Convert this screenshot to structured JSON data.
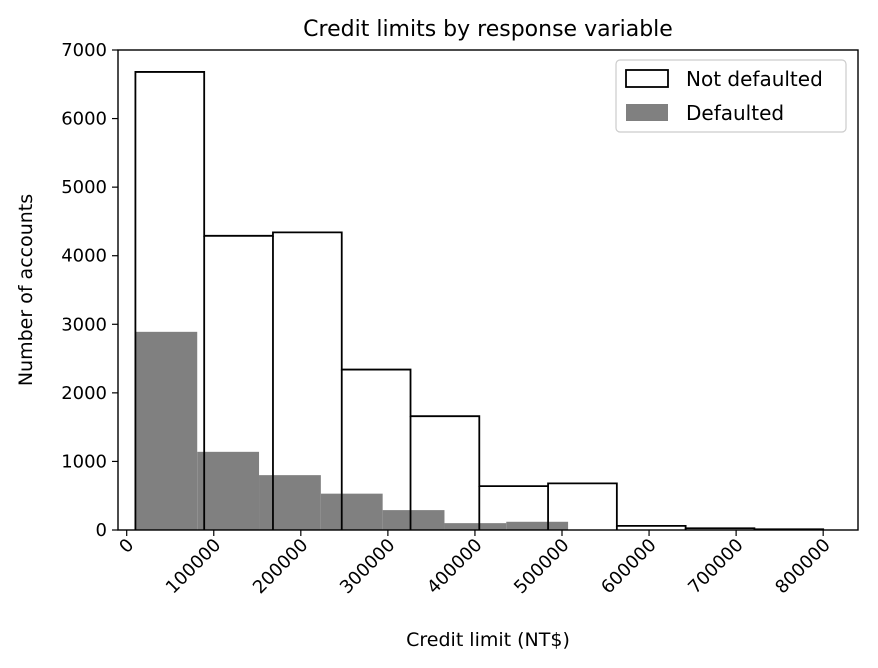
{
  "chart_data": {
    "type": "bar",
    "title": "Credit limits by response variable",
    "xlabel": "Credit limit (NT$)",
    "ylabel": "Number of accounts",
    "xlim": [
      -10000,
      840000
    ],
    "ylim": [
      0,
      7000
    ],
    "xticks": [
      0,
      100000,
      200000,
      300000,
      400000,
      500000,
      600000,
      700000,
      800000
    ],
    "xtick_labels": [
      "0",
      "100000",
      "200000",
      "300000",
      "400000",
      "500000",
      "600000",
      "700000",
      "800000"
    ],
    "yticks": [
      0,
      1000,
      2000,
      3000,
      4000,
      5000,
      6000,
      7000
    ],
    "ytick_labels": [
      "0",
      "1000",
      "2000",
      "3000",
      "4000",
      "5000",
      "6000",
      "7000"
    ],
    "legend_position": "top-right",
    "series": [
      {
        "name": "Not defaulted",
        "style": "step-outline",
        "color": "#000000",
        "bin_edges": [
          10000,
          89000,
          168000,
          247000,
          326000,
          405000,
          484000,
          563000,
          642000,
          721000,
          800000
        ],
        "values": [
          6680,
          4290,
          4340,
          2340,
          1660,
          640,
          680,
          60,
          25,
          10
        ]
      },
      {
        "name": "Defaulted",
        "style": "filled",
        "color": "#808080",
        "bin_edges": [
          10000,
          81000,
          152000,
          223000,
          294000,
          365000,
          436000,
          507000
        ],
        "values": [
          2890,
          1140,
          800,
          530,
          290,
          100,
          120
        ]
      }
    ]
  }
}
